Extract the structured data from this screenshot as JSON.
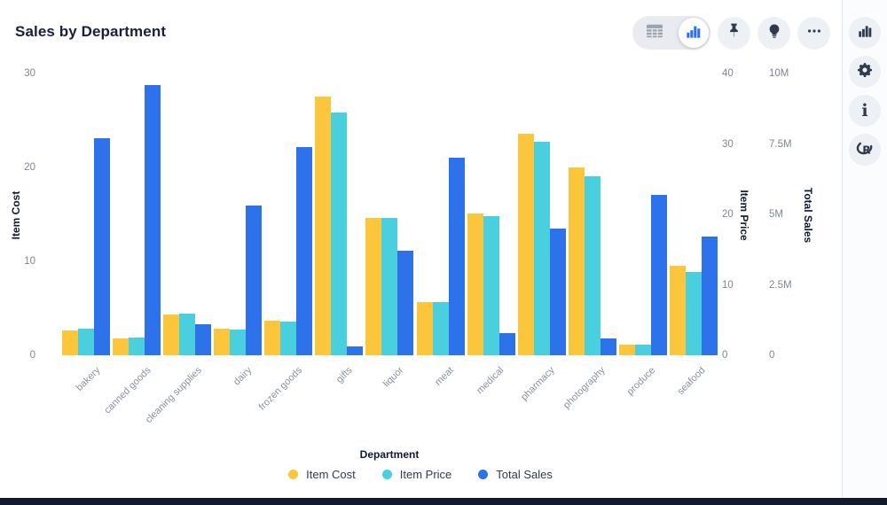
{
  "title": "Sales by Department",
  "toolbar": {
    "view_toggle": {
      "selected": "chart",
      "options": [
        "table",
        "chart"
      ]
    },
    "icons": [
      "table-view",
      "chart-view",
      "pin",
      "lightbulb",
      "more-options"
    ]
  },
  "sidebar": {
    "icons": [
      "bar-chart",
      "settings",
      "info",
      "r-language"
    ]
  },
  "colors": {
    "item_cost": "#fbc63c",
    "item_price": "#49cfde",
    "total_sales": "#2d71eb",
    "icon_dark": "#2e3a4e",
    "icon_gray": "#9aa3ae"
  },
  "chart_data": {
    "type": "bar",
    "title": "Sales by Department",
    "xlabel": "Department",
    "grid": false,
    "legend_position": "bottom",
    "categories": [
      "bakery",
      "canned goods",
      "cleaning supplies",
      "dairy",
      "frozen goods",
      "gifts",
      "liquor",
      "meat",
      "medical",
      "pharmacy",
      "photography",
      "produce",
      "seafood"
    ],
    "series": [
      {
        "name": "Item Cost",
        "axis": "left",
        "color": "#fbc63c",
        "values": [
          2.6,
          1.8,
          4.3,
          2.8,
          3.7,
          27.5,
          14.6,
          5.7,
          15.1,
          23.6,
          20.0,
          1.1,
          9.5
        ]
      },
      {
        "name": "Item Price",
        "axis": "right1",
        "color": "#49cfde",
        "values": [
          3.8,
          2.5,
          5.9,
          3.6,
          4.8,
          34.5,
          19.5,
          7.5,
          19.7,
          30.3,
          25.4,
          1.5,
          11.8
        ]
      },
      {
        "name": "Total Sales",
        "axis": "right2",
        "color": "#2d71eb",
        "values": [
          7700000,
          9600000,
          1100000,
          5300000,
          7400000,
          300000,
          3700000,
          7000000,
          800000,
          4500000,
          600000,
          5700000,
          4200000
        ]
      }
    ],
    "axes": {
      "left": {
        "label": "Item Cost",
        "ticks": [
          "0",
          "10",
          "20",
          "30"
        ],
        "min": 0,
        "max": 30
      },
      "right1": {
        "label": "Item Price",
        "ticks": [
          "0",
          "10",
          "20",
          "30",
          "40"
        ],
        "min": 0,
        "max": 40
      },
      "right2": {
        "label": "Total Sales",
        "ticks": [
          "0",
          "2.5M",
          "5M",
          "7.5M",
          "10M"
        ],
        "min": 0,
        "max": 10000000
      }
    },
    "legend": [
      "Item Cost",
      "Item Price",
      "Total Sales"
    ]
  }
}
